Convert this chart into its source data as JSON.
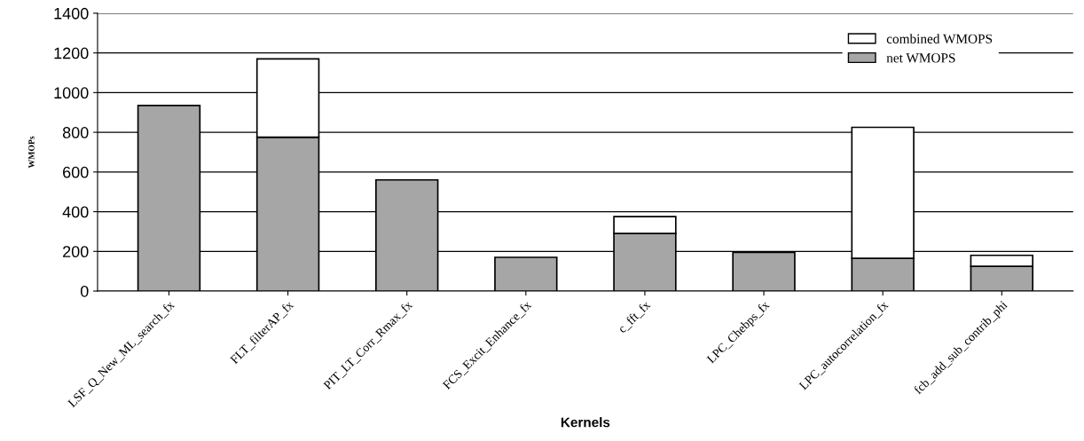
{
  "chart_data": {
    "type": "bar",
    "stacked": true,
    "xlabel": "Kernels",
    "ylabel": "WMOPs",
    "categories": [
      "LSF_Q_New_ML_search_fx",
      "FLT_filterAP_fx",
      "PIT_LT_Corr_Rmax_fx",
      "FCS_Excit_Enhance_fx",
      "c_fft_fx",
      "LPC_Chebps_fx",
      "LPC_autocorrelation_fx",
      "fcb_add_sub_contrib_phi"
    ],
    "series": [
      {
        "name": "net WMOPS",
        "color": "#a6a6a6",
        "values": [
          935,
          775,
          560,
          170,
          290,
          195,
          165,
          125
        ]
      },
      {
        "name": "combined WMOPS",
        "color": "#ffffff",
        "values": [
          0,
          395,
          0,
          0,
          85,
          0,
          660,
          55
        ]
      }
    ],
    "ylim": [
      0,
      1400
    ],
    "yticks": [
      0,
      200,
      400,
      600,
      800,
      1000,
      1200,
      1400
    ],
    "grid": "y",
    "legend": "top right"
  }
}
